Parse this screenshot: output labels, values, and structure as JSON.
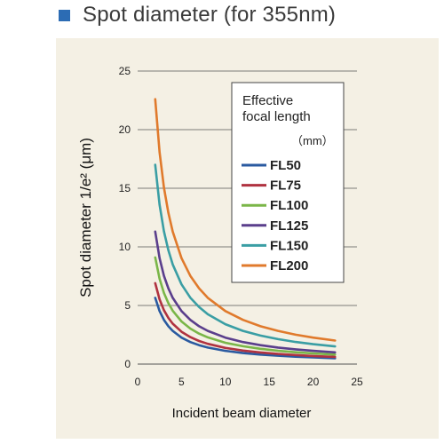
{
  "header": {
    "title": "Spot diameter (for 355nm)",
    "accent_color": "#2c6cb4"
  },
  "chart_data": {
    "type": "line",
    "title": "Spot diameter (for 355nm)",
    "xlabel": "Incident beam diameter",
    "ylabel": "Spot diameter 1/e² (μm)",
    "xlim": [
      0,
      25
    ],
    "ylim": [
      0,
      25
    ],
    "x_ticks": [
      0,
      5,
      10,
      15,
      20,
      25
    ],
    "y_ticks": [
      0,
      5,
      10,
      15,
      20,
      25
    ],
    "grid": "horizontal",
    "legend": {
      "title_line1": "Effective",
      "title_line2": "focal length",
      "unit": "（mm）",
      "placement": "top-right"
    },
    "x": [
      2,
      2.5,
      3,
      3.5,
      4,
      5,
      6,
      7,
      8,
      10,
      12,
      14,
      16,
      18,
      20,
      22.5
    ],
    "series": [
      {
        "name": "FL50",
        "color": "#2a5aa0",
        "values": [
          5.65,
          4.52,
          3.77,
          3.23,
          2.83,
          2.26,
          1.88,
          1.61,
          1.41,
          1.13,
          0.94,
          0.81,
          0.71,
          0.63,
          0.57,
          0.5
        ]
      },
      {
        "name": "FL75",
        "color": "#b03240",
        "values": [
          6.9,
          5.52,
          4.6,
          3.94,
          3.45,
          2.76,
          2.3,
          1.97,
          1.73,
          1.38,
          1.15,
          0.99,
          0.86,
          0.77,
          0.69,
          0.61
        ]
      },
      {
        "name": "FL100",
        "color": "#7ab648",
        "values": [
          9.1,
          7.28,
          6.07,
          5.2,
          4.55,
          3.64,
          3.03,
          2.6,
          2.28,
          1.82,
          1.52,
          1.3,
          1.14,
          1.01,
          0.91,
          0.81
        ]
      },
      {
        "name": "FL125",
        "color": "#5a3e8c",
        "values": [
          11.3,
          9.04,
          7.53,
          6.46,
          5.65,
          4.52,
          3.77,
          3.23,
          2.83,
          2.26,
          1.88,
          1.61,
          1.41,
          1.26,
          1.13,
          1.0
        ]
      },
      {
        "name": "FL150",
        "color": "#3a9ea4",
        "values": [
          17.0,
          13.6,
          11.33,
          9.71,
          8.5,
          6.8,
          5.67,
          4.86,
          4.25,
          3.4,
          2.83,
          2.43,
          2.13,
          1.89,
          1.7,
          1.51
        ]
      },
      {
        "name": "FL200",
        "color": "#e07a2c",
        "values": [
          22.6,
          18.08,
          15.07,
          12.91,
          11.3,
          9.04,
          7.53,
          6.46,
          5.65,
          4.52,
          3.77,
          3.23,
          2.83,
          2.51,
          2.26,
          2.01
        ]
      }
    ]
  }
}
